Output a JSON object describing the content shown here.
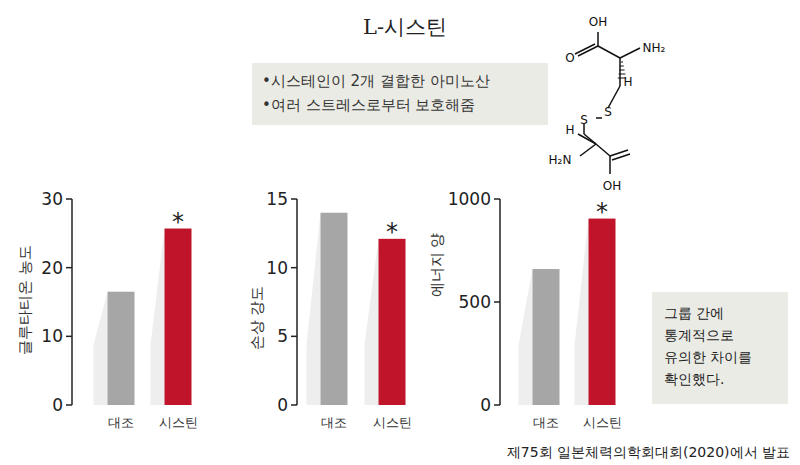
{
  "title": "L-시스틴",
  "notes": [
    "•시스테인이 2개 결합한 아미노산",
    "•여러 스트레스로부터 보호해줌"
  ],
  "molecule": {
    "labels": [
      "OH",
      "O",
      "NH₂",
      "H",
      "S",
      "S",
      "H",
      "H₂N",
      "OH"
    ]
  },
  "side_note": [
    "그룹 간에",
    "통계적으로",
    "유의한 차이를",
    "확인했다."
  ],
  "source": "제75회 일본체력의학회대회(2020)에서 발표",
  "chart_data": [
    {
      "type": "bar",
      "y_label": "글루타티온 농도",
      "categories": [
        "대조",
        "시스틴"
      ],
      "values": [
        16.5,
        25.7
      ],
      "colors": [
        "#a6a6a6",
        "#c0142a"
      ],
      "ylim": [
        0,
        30
      ],
      "yticks": [
        0,
        10,
        20,
        30
      ],
      "grid": false,
      "annotations": [
        {
          "text": "*",
          "category": "시스틴"
        }
      ]
    },
    {
      "type": "bar",
      "y_label": "손상 강도",
      "categories": [
        "대조",
        "시스틴"
      ],
      "values": [
        14.0,
        12.1
      ],
      "colors": [
        "#a6a6a6",
        "#c0142a"
      ],
      "ylim": [
        0,
        15
      ],
      "yticks": [
        0,
        5,
        10,
        15
      ],
      "grid": false,
      "annotations": [
        {
          "text": "*",
          "category": "시스틴"
        }
      ]
    },
    {
      "type": "bar",
      "y_label": "에너지 양",
      "categories": [
        "대조",
        "시스틴"
      ],
      "values": [
        660,
        905
      ],
      "colors": [
        "#a6a6a6",
        "#c0142a"
      ],
      "ylim": [
        0,
        1000
      ],
      "yticks": [
        0,
        500,
        1000
      ],
      "grid": false,
      "annotations": [
        {
          "text": "*",
          "category": "시스틴"
        }
      ]
    }
  ]
}
